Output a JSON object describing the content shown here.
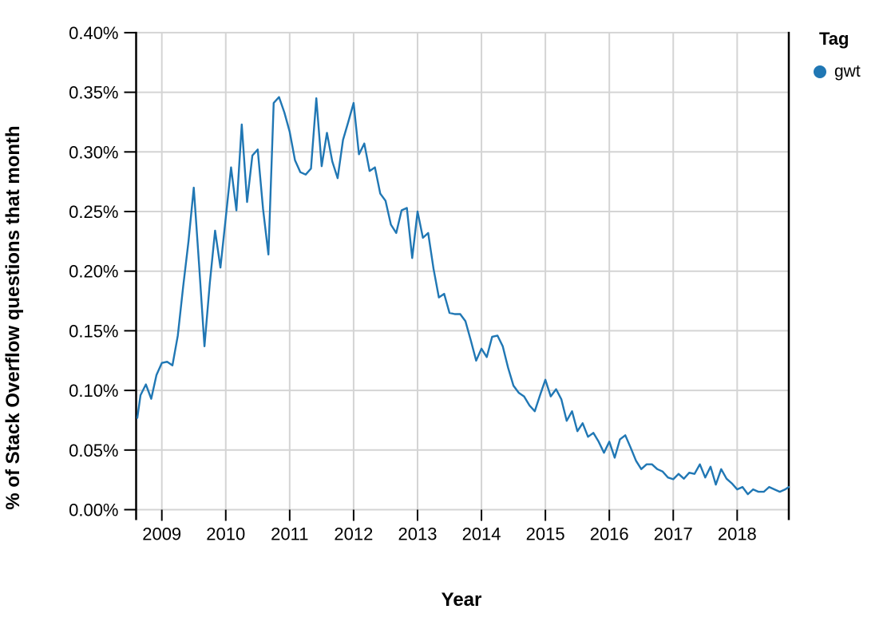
{
  "page": {
    "background": "#ffffff"
  },
  "chart_data": {
    "type": "line",
    "title": "",
    "xlabel": "Year",
    "ylabel": "% of Stack Overflow questions that month",
    "legend_title": "Tag",
    "legend_position": "top-right",
    "grid": true,
    "ylim": [
      0.0,
      0.4
    ],
    "x_range_months": [
      "2008-08",
      "2018-11"
    ],
    "x_ticks": [
      2009,
      2010,
      2011,
      2012,
      2013,
      2014,
      2015,
      2016,
      2017,
      2018
    ],
    "y_ticks": [
      {
        "label": "0.40%",
        "value": 0.4
      },
      {
        "label": "0.35%",
        "value": 0.35
      },
      {
        "label": "0.30%",
        "value": 0.3
      },
      {
        "label": "0.25%",
        "value": 0.25
      },
      {
        "label": "0.20%",
        "value": 0.2
      },
      {
        "label": "0.15%",
        "value": 0.15
      },
      {
        "label": "0.10%",
        "value": 0.1
      },
      {
        "label": "0.05%",
        "value": 0.05
      },
      {
        "label": "0.00%",
        "value": 0.0
      }
    ],
    "colors": {
      "grid": "#d4d4d4",
      "axis": "#000000",
      "text": "#000000",
      "series_gwt": "#2077b4"
    },
    "series": [
      {
        "name": "gwt",
        "color": "#2077b4",
        "start": "2008-08",
        "interval": "monthly",
        "unit": "percent",
        "values_percent": [
          0.077,
          0.096,
          0.105,
          0.093,
          0.113,
          0.123,
          0.124,
          0.121,
          0.146,
          0.187,
          0.225,
          0.27,
          0.205,
          0.137,
          0.19,
          0.234,
          0.203,
          0.245,
          0.287,
          0.251,
          0.323,
          0.258,
          0.297,
          0.302,
          0.252,
          0.214,
          0.341,
          0.346,
          0.333,
          0.317,
          0.293,
          0.283,
          0.281,
          0.286,
          0.345,
          0.288,
          0.316,
          0.292,
          0.278,
          0.31,
          0.325,
          0.341,
          0.298,
          0.307,
          0.284,
          0.287,
          0.265,
          0.259,
          0.239,
          0.232,
          0.251,
          0.253,
          0.211,
          0.25,
          0.228,
          0.232,
          0.202,
          0.178,
          0.181,
          0.165,
          0.164,
          0.164,
          0.158,
          0.142,
          0.125,
          0.135,
          0.128,
          0.145,
          0.146,
          0.137,
          0.119,
          0.104,
          0.098,
          0.095,
          0.0875,
          0.0825,
          0.096,
          0.109,
          0.095,
          0.101,
          0.0926,
          0.0745,
          0.0825,
          0.0658,
          0.0725,
          0.0611,
          0.0644,
          0.057,
          0.0477,
          0.057,
          0.0436,
          0.059,
          0.0624,
          0.052,
          0.041,
          0.034,
          0.038,
          0.038,
          0.034,
          0.032,
          0.027,
          0.0255,
          0.03,
          0.026,
          0.031,
          0.03,
          0.038,
          0.027,
          0.036,
          0.021,
          0.034,
          0.026,
          0.022,
          0.017,
          0.019,
          0.013,
          0.017,
          0.015,
          0.015,
          0.019,
          0.017,
          0.015,
          0.017,
          0.019
        ]
      }
    ]
  }
}
